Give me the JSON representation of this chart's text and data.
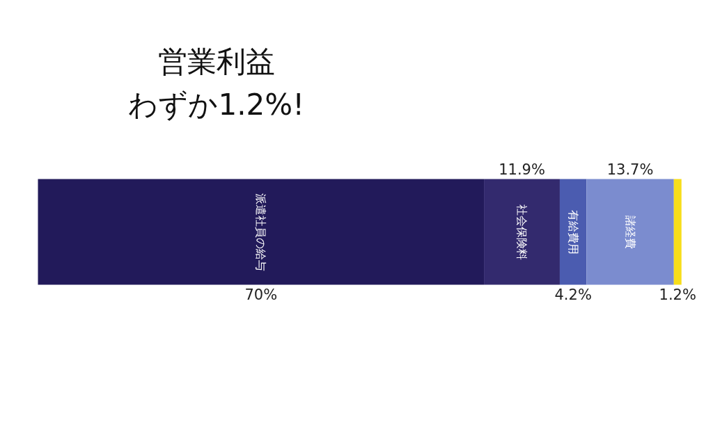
{
  "chart_data": {
    "type": "bar",
    "orientation": "horizontal",
    "stacked": true,
    "title": "営業利益",
    "subtitle": "わずか1.2%!",
    "categories": [
      null
    ],
    "series": [
      {
        "name": "派遣社員の給与",
        "color": "#221a5a",
        "values": [
          70
        ],
        "value_labels": [
          "70%"
        ]
      },
      {
        "name": "社会保険料",
        "color": "#332a6e",
        "values": [
          11.9
        ],
        "value_labels": [
          "11.9%"
        ]
      },
      {
        "name": "有給費用",
        "color": "#4b5cb0",
        "values": [
          4.2
        ],
        "value_labels": [
          "4.2%"
        ]
      },
      {
        "name": "諸経費",
        "color": "#7b8ccf",
        "values": [
          13.7
        ],
        "value_labels": [
          "13.7%"
        ]
      },
      {
        "color": "#f7de1a",
        "values": [
          1.2
        ],
        "value_labels": [
          "1.2%"
        ]
      }
    ]
  }
}
